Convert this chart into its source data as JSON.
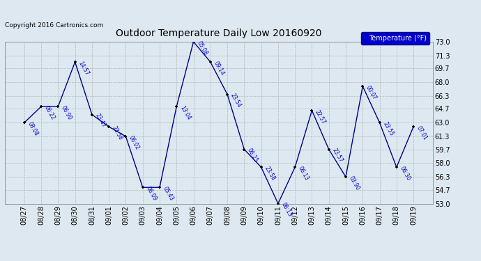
{
  "title": "Outdoor Temperature Daily Low 20160920",
  "copyright": "Copyright 2016 Cartronics.com",
  "legend_label": "Temperature (°F)",
  "x_labels": [
    "08/27",
    "08/28",
    "08/29",
    "08/30",
    "08/31",
    "09/01",
    "09/02",
    "09/03",
    "09/04",
    "09/05",
    "09/06",
    "09/07",
    "09/08",
    "09/09",
    "09/10",
    "09/11",
    "09/12",
    "09/13",
    "09/14",
    "09/15",
    "09/16",
    "09/17",
    "09/18",
    "09/19"
  ],
  "y_values": [
    63.0,
    65.0,
    65.0,
    70.5,
    64.0,
    62.5,
    61.3,
    55.0,
    55.0,
    65.0,
    73.0,
    70.5,
    66.5,
    59.7,
    57.5,
    53.0,
    57.5,
    64.5,
    59.7,
    56.3,
    67.5,
    63.0,
    57.5,
    62.5
  ],
  "point_labels": [
    "08:08",
    "06:22",
    "06:90",
    "14:57",
    "23:47",
    "23:58",
    "06:02",
    "06:09",
    "05:43",
    "13:04",
    "05:08",
    "09:14",
    "23:54",
    "06:25",
    "23:58",
    "06:13",
    "06:13",
    "22:57",
    "23:57",
    "03:90",
    "00:07",
    "23:55",
    "06:30",
    "07:01"
  ],
  "line_color": "#00008B",
  "marker_color": "#000000",
  "bg_color": "#dde8f0",
  "grid_color": "#aaaaaa",
  "title_color": "#000000",
  "label_color": "#0000cc",
  "ylim": [
    53.0,
    73.0
  ],
  "yticks": [
    53.0,
    54.7,
    56.3,
    58.0,
    59.7,
    61.3,
    63.0,
    64.7,
    66.3,
    68.0,
    69.7,
    71.3,
    73.0
  ],
  "legend_bg": "#0000cc",
  "legend_text_color": "#ffffff"
}
